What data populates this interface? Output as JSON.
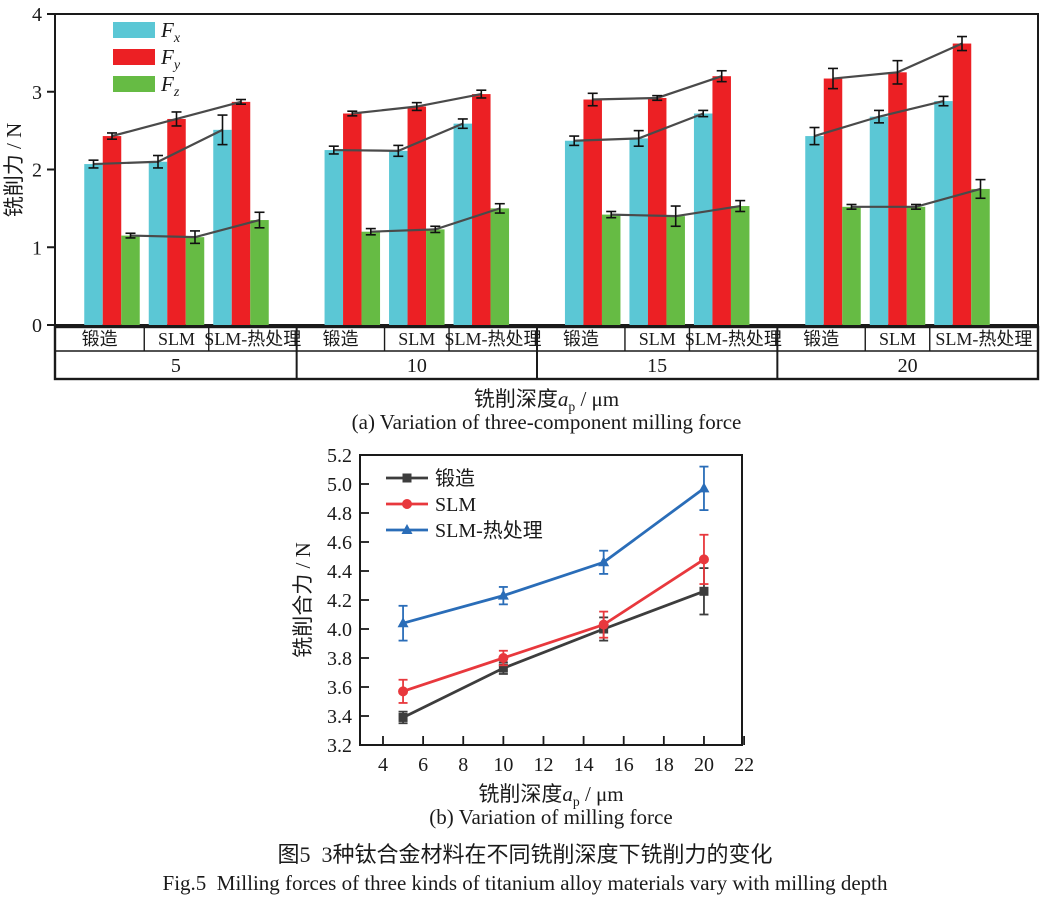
{
  "figure": {
    "caption_zh": "图5  3种钛合金材料在不同铣削深度下铣削力的变化",
    "caption_en": "Fig.5  Milling forces of three kinds of titanium alloy materials vary with milling depth"
  },
  "chart_data": [
    {
      "id": "a",
      "type": "bar",
      "subtitle": "(a) Variation of three-component milling force",
      "ylabel": "铣削力 / N",
      "xlabel": {
        "prefix": "铣削深度",
        "sym": "a",
        "sub": "p",
        "suffix": " / μm"
      },
      "ylim": [
        0,
        4
      ],
      "yticks": [
        0,
        1,
        2,
        3,
        4
      ],
      "depth_categories": [
        "5",
        "10",
        "15",
        "20"
      ],
      "material_categories": [
        "锻造",
        "SLM",
        "SLM-热处理"
      ],
      "connector_line_color": "#4a4a4a",
      "error_bar_color": "#111111",
      "series": [
        {
          "key": "Fx",
          "label": {
            "base": "F",
            "sub": "x"
          },
          "color": "#5bc7d5",
          "values": [
            [
              2.07,
              2.1,
              2.51
            ],
            [
              2.25,
              2.24,
              2.59
            ],
            [
              2.37,
              2.4,
              2.72
            ],
            [
              2.43,
              2.68,
              2.88
            ]
          ],
          "errors": [
            [
              0.05,
              0.08,
              0.19
            ],
            [
              0.05,
              0.07,
              0.06
            ],
            [
              0.06,
              0.1,
              0.04
            ],
            [
              0.11,
              0.08,
              0.06
            ]
          ]
        },
        {
          "key": "Fy",
          "label": {
            "base": "F",
            "sub": "y"
          },
          "color": "#ec2024",
          "values": [
            [
              2.43,
              2.65,
              2.87
            ],
            [
              2.72,
              2.81,
              2.97
            ],
            [
              2.9,
              2.92,
              3.2
            ],
            [
              3.17,
              3.25,
              3.62
            ]
          ],
          "errors": [
            [
              0.04,
              0.09,
              0.03
            ],
            [
              0.03,
              0.05,
              0.05
            ],
            [
              0.08,
              0.03,
              0.07
            ],
            [
              0.13,
              0.15,
              0.09
            ]
          ]
        },
        {
          "key": "Fz",
          "label": {
            "base": "F",
            "sub": "z"
          },
          "color": "#66bb44",
          "values": [
            [
              1.15,
              1.13,
              1.35
            ],
            [
              1.2,
              1.23,
              1.5
            ],
            [
              1.42,
              1.4,
              1.53
            ],
            [
              1.52,
              1.52,
              1.75
            ]
          ],
          "errors": [
            [
              0.03,
              0.08,
              0.1
            ],
            [
              0.04,
              0.04,
              0.06
            ],
            [
              0.04,
              0.13,
              0.07
            ],
            [
              0.03,
              0.03,
              0.12
            ]
          ]
        }
      ]
    },
    {
      "id": "b",
      "type": "line",
      "subtitle": "(b) Variation of milling force",
      "ylabel": "铣削合力 / N",
      "xlabel": {
        "prefix": "铣削深度",
        "sym": "a",
        "sub": "p",
        "suffix": " / μm"
      },
      "xlim": [
        3,
        23
      ],
      "ylim": [
        3.2,
        5.2
      ],
      "xticks": [
        4,
        6,
        8,
        10,
        12,
        14,
        16,
        18,
        20,
        22
      ],
      "ytick_step": 0.2,
      "x": [
        5,
        10,
        15,
        20
      ],
      "series": [
        {
          "name": "锻造",
          "marker": "square",
          "color": "#3d3d3d",
          "values": [
            3.39,
            3.73,
            4.0,
            4.26
          ],
          "errors": [
            0.04,
            0.04,
            0.08,
            0.16
          ]
        },
        {
          "name": "SLM",
          "marker": "circle",
          "color": "#e8383d",
          "values": [
            3.57,
            3.8,
            4.03,
            4.48
          ],
          "errors": [
            0.08,
            0.05,
            0.09,
            0.17
          ]
        },
        {
          "name": "SLM-热处理",
          "marker": "triangle",
          "color": "#2a6db8",
          "values": [
            4.04,
            4.23,
            4.46,
            4.97
          ],
          "errors": [
            0.12,
            0.06,
            0.08,
            0.15
          ]
        }
      ]
    }
  ]
}
